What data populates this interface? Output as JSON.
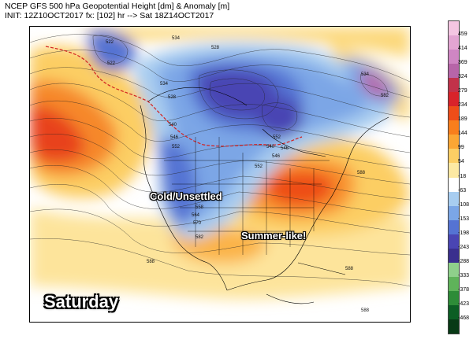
{
  "header": {
    "line1": "NCEP GFS 500 hPa Geopotential Height [dm] & Anomaly [m]",
    "line2": "INIT: 12Z10OCT2017 fx: [102] hr --> Sat 18Z14OCT2017"
  },
  "overlays": {
    "cold": "Cold/Unsettled",
    "summer": "Summer-like!",
    "day": "Saturday"
  },
  "contour_labels": [
    "522",
    "534",
    "528",
    "534",
    "528",
    "540",
    "546",
    "552",
    "588",
    "540",
    "546",
    "552",
    "558",
    "564",
    "570",
    "582",
    "588",
    "588",
    "588",
    "522",
    "552",
    "534",
    "546",
    "552",
    "588"
  ],
  "colorbar": {
    "ticks": [
      "459",
      "414",
      "369",
      "324",
      "279",
      "234",
      "189",
      "144",
      "99",
      "54",
      "-18",
      "-63",
      "-108",
      "-153",
      "-198",
      "-243",
      "-288",
      "-333",
      "-378",
      "-423",
      "-468"
    ],
    "colors": [
      "#f4c6e2",
      "#e3a5d2",
      "#cf86c3",
      "#b765a8",
      "#c2324a",
      "#d9232a",
      "#ee4d19",
      "#f87e1c",
      "#fba634",
      "#fcce64",
      "#fde9a3",
      "#ffffff",
      "#a8cdf0",
      "#7ba6e6",
      "#5573d3",
      "#4a45b3",
      "#3a2f8e",
      "#8fd08b",
      "#5fb35a",
      "#2e8c38",
      "#0c5e24",
      "#083a16"
    ]
  }
}
